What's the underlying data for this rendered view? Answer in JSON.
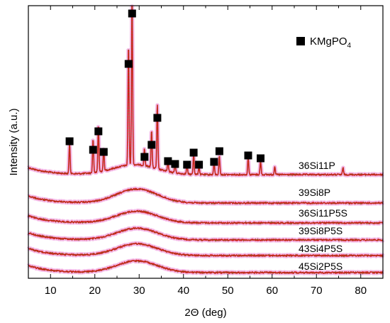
{
  "chart_data": {
    "type": "line",
    "xlabel": "2Θ (deg)",
    "ylabel": "Intensity (a.u.)",
    "xlim": [
      5,
      85
    ],
    "x_ticks": [
      "10",
      "20",
      "30",
      "40",
      "50",
      "60",
      "70",
      "80"
    ],
    "y_ticks_shown": false,
    "grid": false,
    "legend": {
      "placement": "top-right",
      "entries": [
        {
          "marker": "filled-square",
          "label": "KMgPO",
          "subscript": "4"
        }
      ]
    },
    "colors": {
      "pattern": "#d21c1c",
      "pattern_dots": "#7a6b1e",
      "halo": "#f0a8e0",
      "marker": "#000000"
    },
    "series": [
      {
        "name": "36Si11P",
        "kind": "crystalline",
        "peaks": [
          {
            "x": 14.3,
            "h": 0.18
          },
          {
            "x": 19.6,
            "h": 0.2
          },
          {
            "x": 20.8,
            "h": 0.28
          },
          {
            "x": 22.0,
            "h": 0.13
          },
          {
            "x": 27.6,
            "h": 0.72
          },
          {
            "x": 28.4,
            "h": 1.0
          },
          {
            "x": 31.2,
            "h": 0.1
          },
          {
            "x": 32.8,
            "h": 0.22
          },
          {
            "x": 34.1,
            "h": 0.38
          },
          {
            "x": 36.5,
            "h": 0.06
          },
          {
            "x": 38.1,
            "h": 0.06
          },
          {
            "x": 40.8,
            "h": 0.05
          },
          {
            "x": 42.3,
            "h": 0.12
          },
          {
            "x": 43.5,
            "h": 0.05
          },
          {
            "x": 46.9,
            "h": 0.07
          },
          {
            "x": 48.1,
            "h": 0.11
          },
          {
            "x": 54.6,
            "h": 0.1
          },
          {
            "x": 57.4,
            "h": 0.08
          },
          {
            "x": 60.6,
            "h": 0.05
          },
          {
            "x": 76.0,
            "h": 0.04
          }
        ],
        "markers_x": [
          14.3,
          19.6,
          20.8,
          22.0,
          27.6,
          28.4,
          31.2,
          32.8,
          34.1,
          36.5,
          38.1,
          40.8,
          42.3,
          43.5,
          46.9,
          48.1,
          54.6,
          57.4
        ]
      },
      {
        "name": "39Si8P",
        "kind": "amorphous",
        "hump_center": 29.5,
        "hump_height": 0.06
      },
      {
        "name": "36Si11P5S",
        "kind": "amorphous",
        "hump_center": 29.5,
        "hump_height": 0.05
      },
      {
        "name": "39Si8P5S",
        "kind": "amorphous",
        "hump_center": 29.5,
        "hump_height": 0.05
      },
      {
        "name": "43Si4P5S",
        "kind": "amorphous",
        "hump_center": 29.5,
        "hump_height": 0.05
      },
      {
        "name": "45Si2P5S",
        "kind": "amorphous",
        "hump_center": 29.5,
        "hump_height": 0.05
      }
    ]
  }
}
